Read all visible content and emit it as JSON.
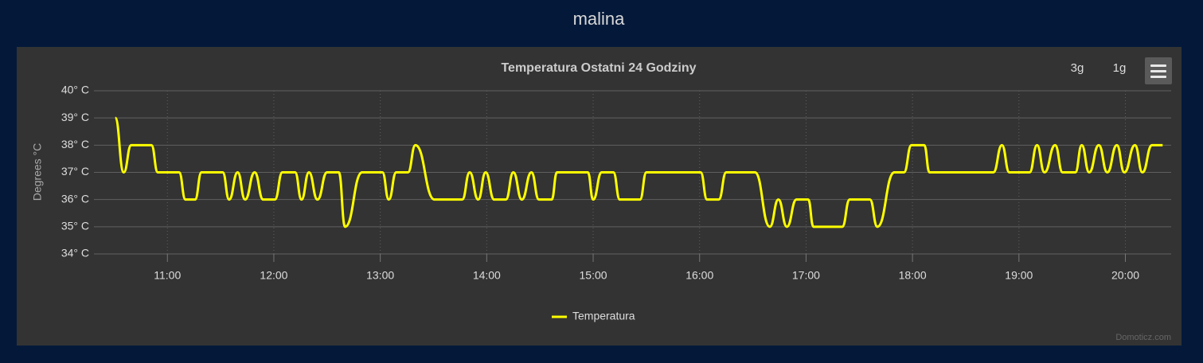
{
  "header": {
    "title": "malina"
  },
  "buttons": [
    "3g",
    "1g"
  ],
  "credit": "Domoticz.com",
  "chart_data": {
    "type": "line",
    "title": "Temperatura Ostatni 24 Godziny",
    "y_label": "Degrees °C",
    "xlim": [
      10.31,
      20.43
    ],
    "ylim": [
      34,
      40
    ],
    "xticks": [
      {
        "value": 11,
        "label": "11:00"
      },
      {
        "value": 12,
        "label": "12:00"
      },
      {
        "value": 13,
        "label": "13:00"
      },
      {
        "value": 14,
        "label": "14:00"
      },
      {
        "value": 15,
        "label": "15:00"
      },
      {
        "value": 16,
        "label": "16:00"
      },
      {
        "value": 17,
        "label": "17:00"
      },
      {
        "value": 18,
        "label": "18:00"
      },
      {
        "value": 19,
        "label": "19:00"
      },
      {
        "value": 20,
        "label": "20:00"
      }
    ],
    "yticks": [
      {
        "value": 34,
        "label": "34° C"
      },
      {
        "value": 35,
        "label": "35° C"
      },
      {
        "value": 36,
        "label": "36° C"
      },
      {
        "value": 37,
        "label": "37° C"
      },
      {
        "value": 38,
        "label": "38° C"
      },
      {
        "value": 39,
        "label": "39° C"
      },
      {
        "value": 40,
        "label": "40° C"
      }
    ],
    "grid": true,
    "legend": "bottom",
    "x": [
      10.51,
      10.59,
      10.66,
      10.85,
      10.91,
      11.11,
      11.17,
      11.26,
      11.32,
      11.52,
      11.58,
      11.66,
      11.73,
      11.82,
      11.9,
      12.01,
      12.08,
      12.2,
      12.26,
      12.33,
      12.41,
      12.5,
      12.61,
      12.67,
      12.83,
      13.02,
      13.08,
      13.15,
      13.26,
      13.33,
      13.51,
      13.77,
      13.84,
      13.92,
      13.99,
      14.07,
      14.18,
      14.25,
      14.33,
      14.42,
      14.49,
      14.61,
      14.66,
      14.95,
      15.0,
      15.08,
      15.19,
      15.25,
      15.44,
      15.5,
      16.01,
      16.07,
      16.18,
      16.25,
      16.52,
      16.66,
      16.74,
      16.82,
      16.91,
      17.02,
      17.07,
      17.34,
      17.41,
      17.6,
      17.67,
      17.83,
      17.92,
      17.99,
      18.11,
      18.16,
      18.76,
      18.84,
      18.91,
      19.1,
      19.17,
      19.24,
      19.34,
      19.41,
      19.53,
      19.59,
      19.66,
      19.75,
      19.83,
      19.92,
      19.99,
      20.09,
      20.16,
      20.25,
      20.35
    ],
    "series": [
      {
        "name": "Temperatura",
        "color": "#ffff00",
        "values": [
          39,
          37,
          38,
          38,
          37,
          37,
          36,
          36,
          37,
          37,
          36,
          37,
          36,
          37,
          36,
          36,
          37,
          37,
          36,
          37,
          36,
          37,
          37,
          35,
          37,
          37,
          36,
          37,
          37,
          38,
          36,
          36,
          37,
          36,
          37,
          36,
          36,
          37,
          36,
          37,
          36,
          36,
          37,
          37,
          36,
          37,
          37,
          36,
          36,
          37,
          37,
          36,
          36,
          37,
          37,
          35,
          36,
          35,
          36,
          36,
          35,
          35,
          36,
          36,
          35,
          37,
          37,
          38,
          38,
          37,
          37,
          38,
          37,
          37,
          38,
          37,
          38,
          37,
          37,
          38,
          37,
          38,
          37,
          38,
          37,
          38,
          37,
          38,
          38
        ]
      }
    ]
  }
}
